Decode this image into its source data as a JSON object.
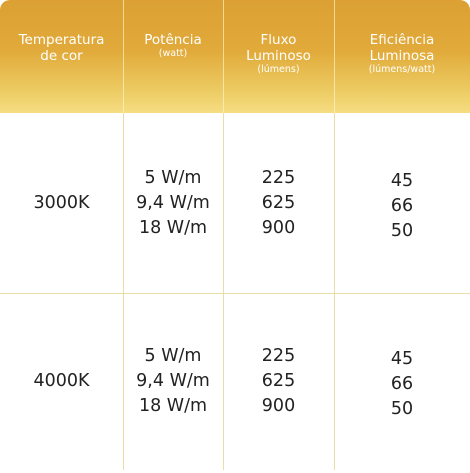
{
  "header": {
    "columns": [
      {
        "title": "Temperatura\nde cor",
        "unit": ""
      },
      {
        "title": "Potência",
        "unit": "(watt)"
      },
      {
        "title": "Fluxo\nLuminoso",
        "unit": "(lúmens)"
      },
      {
        "title": "Eficiência\nLuminosa",
        "unit": "(lúmens/watt)"
      }
    ]
  },
  "rows": [
    {
      "temperature": "3000K",
      "power": [
        "5 W/m",
        "9,4 W/m",
        "18 W/m"
      ],
      "flux": [
        "225",
        "625",
        "900"
      ],
      "efficiency": [
        "45",
        "66",
        "50"
      ]
    },
    {
      "temperature": "4000K",
      "power": [
        "5 W/m",
        "9,4 W/m",
        "18 W/m"
      ],
      "flux": [
        "225",
        "625",
        "900"
      ],
      "efficiency": [
        "45",
        "66",
        "50"
      ]
    }
  ],
  "colors": {
    "header_gradient_top": "#dca033",
    "header_gradient_bottom": "#f6dd82",
    "grid_line": "#ecdca5",
    "header_text": "#ffffff",
    "body_text": "#222222"
  }
}
